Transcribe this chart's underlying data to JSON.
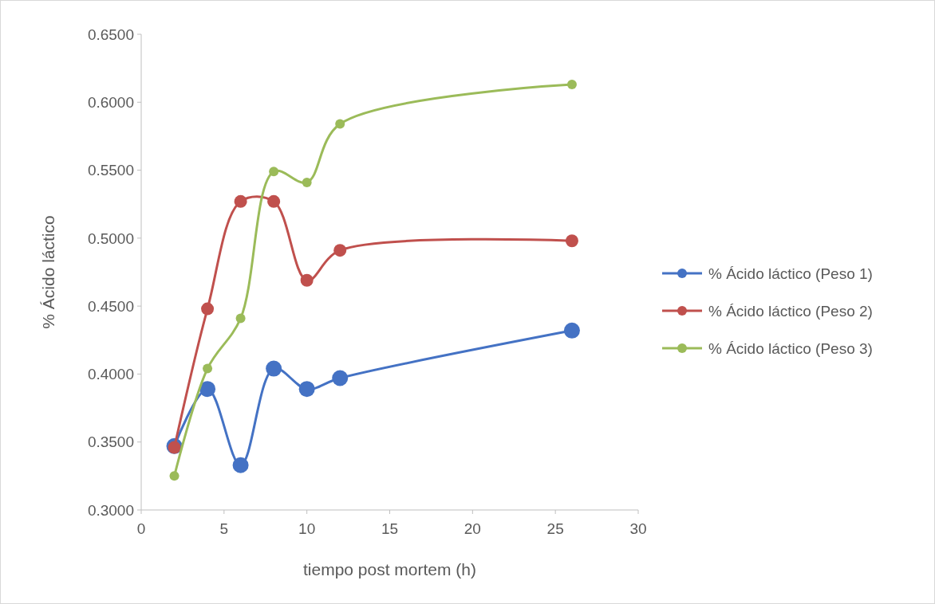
{
  "chart_data": {
    "type": "line",
    "xlabel": "tiempo post mortem (h)",
    "ylabel": "% Ácido láctico",
    "x": [
      2,
      4,
      6,
      8,
      10,
      12,
      26
    ],
    "series": [
      {
        "name": "% Ácido láctico (Peso 1)",
        "color": "#4472c4",
        "values": [
          0.347,
          0.389,
          0.333,
          0.404,
          0.389,
          0.397,
          0.432
        ]
      },
      {
        "name": "% Ácido láctico (Peso 2)",
        "color": "#c0504d",
        "values": [
          0.346,
          0.448,
          0.527,
          0.527,
          0.469,
          0.491,
          0.498
        ]
      },
      {
        "name": "% Ácido láctico (Peso 3)",
        "color": "#9bbb59",
        "values": [
          0.325,
          0.404,
          0.441,
          0.549,
          0.541,
          0.584,
          0.613
        ]
      }
    ],
    "xlim": [
      0,
      30
    ],
    "xticks": [
      0,
      5,
      10,
      15,
      20,
      25,
      30
    ],
    "ylim": [
      0.3,
      0.65
    ],
    "yticks": [
      {
        "value": 0.3,
        "label": "0.3000"
      },
      {
        "value": 0.35,
        "label": "0.3500"
      },
      {
        "value": 0.4,
        "label": "0.4000"
      },
      {
        "value": 0.45,
        "label": "0.4500"
      },
      {
        "value": 0.5,
        "label": "0.5000"
      },
      {
        "value": 0.55,
        "label": "0.5500"
      },
      {
        "value": 0.6,
        "label": "0.6000"
      },
      {
        "value": 0.65,
        "label": "0.6500"
      }
    ],
    "grid": false,
    "legend": "right",
    "marker": "circle",
    "line_style": "solid"
  }
}
